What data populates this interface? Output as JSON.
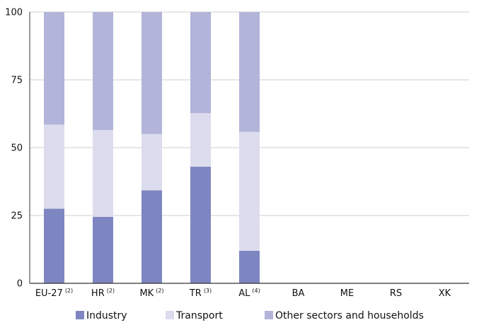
{
  "chart_data": {
    "type": "bar",
    "stacked": true,
    "categories": [
      "EU-27",
      "HR",
      "MK",
      "TR",
      "AL",
      "BA",
      "ME",
      "RS",
      "XK"
    ],
    "category_notes": [
      "(2)",
      "(2)",
      "(2)",
      "(3)",
      "(4)",
      "",
      "",
      "",
      ""
    ],
    "series": [
      {
        "name": "Industry",
        "color": "#7e86c1",
        "values": [
          27.5,
          24.5,
          34.3,
          43.0,
          12.0,
          null,
          null,
          null,
          null
        ]
      },
      {
        "name": "Transport",
        "color": "#dcdcee",
        "values": [
          31.0,
          32.0,
          20.7,
          19.7,
          43.8,
          null,
          null,
          null,
          null
        ]
      },
      {
        "name": "Other sectors and households",
        "color": "#b2b5d9",
        "values": [
          41.5,
          43.5,
          45.0,
          37.3,
          44.2,
          null,
          null,
          null,
          null
        ]
      }
    ],
    "ylim": [
      0,
      100
    ],
    "yticks": [
      "0",
      "25",
      "50",
      "75",
      "100"
    ],
    "grid": true,
    "legend_position": "bottom",
    "title": "",
    "xlabel": "",
    "ylabel": ""
  }
}
